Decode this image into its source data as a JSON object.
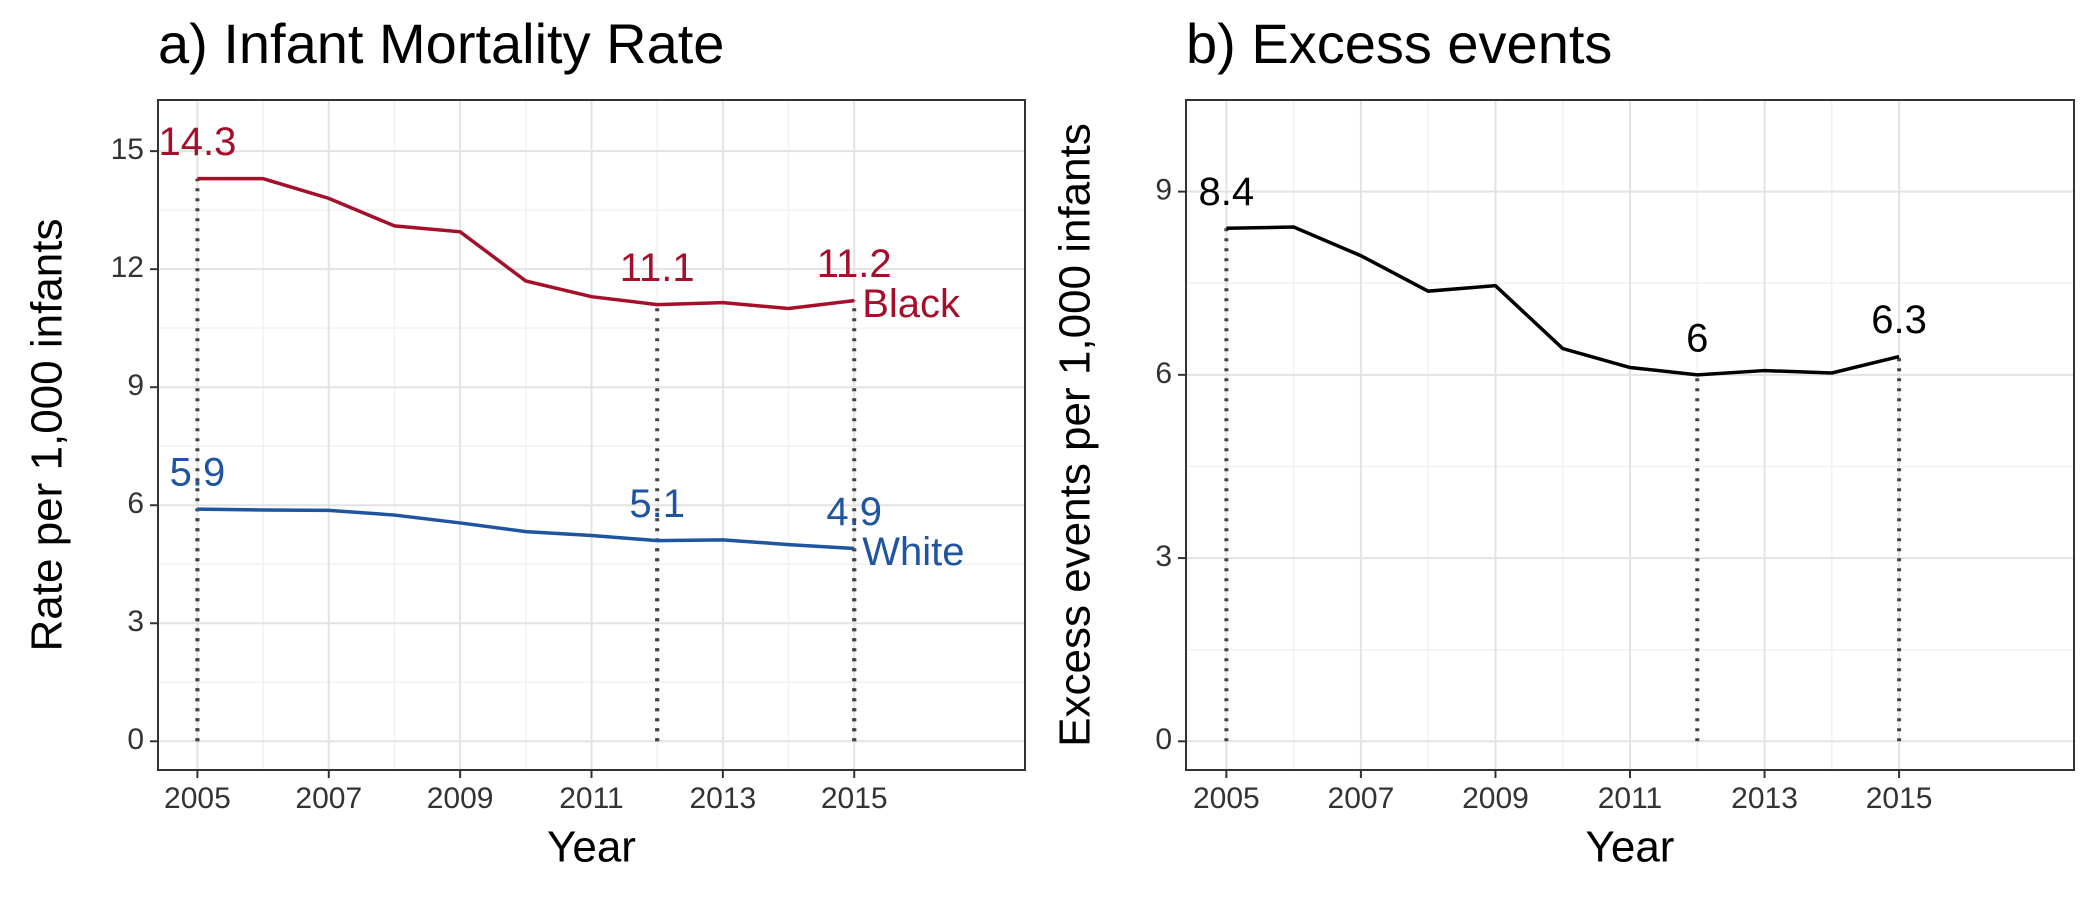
{
  "chart_data": [
    {
      "type": "line",
      "title": "a) Infant Mortality Rate",
      "x_label": "Year",
      "y_label": "Rate per 1,000 infants",
      "x": [
        2005,
        2006,
        2007,
        2008,
        2009,
        2010,
        2011,
        2012,
        2013,
        2014,
        2015
      ],
      "series": [
        {
          "name": "Black",
          "color": "#a50f2c",
          "values": [
            14.3,
            14.3,
            13.8,
            13.1,
            12.95,
            11.7,
            11.3,
            11.1,
            11.15,
            11.0,
            11.2
          ]
        },
        {
          "name": "White",
          "color": "#1f54a0",
          "values": [
            5.9,
            5.88,
            5.87,
            5.75,
            5.55,
            5.33,
            5.23,
            5.1,
            5.12,
            5.0,
            4.9
          ]
        }
      ],
      "labeled_points": [
        0,
        7,
        10
      ],
      "drop_lines": true,
      "xlim": [
        2004.4,
        2017.6
      ],
      "ylim": [
        -0.73,
        16.3
      ],
      "xticks": [
        2005,
        2007,
        2009,
        2011,
        2013,
        2015
      ],
      "yticks": [
        0,
        3,
        6,
        9,
        12,
        15
      ],
      "grid": true
    },
    {
      "type": "line",
      "title": "b) Excess events",
      "x_label": "Year",
      "y_label": "Excess events per 1,000 infants",
      "x": [
        2005,
        2006,
        2007,
        2008,
        2009,
        2010,
        2011,
        2012,
        2013,
        2014,
        2015
      ],
      "values": [
        8.4,
        8.42,
        7.95,
        7.37,
        7.46,
        6.43,
        6.12,
        6,
        6.07,
        6.03,
        6.3
      ],
      "color": "#000000",
      "labeled_points": [
        0,
        7,
        10
      ],
      "drop_lines": true,
      "xlim": [
        2004.4,
        2017.6
      ],
      "ylim": [
        -0.47,
        10.5
      ],
      "xticks": [
        2005,
        2007,
        2009,
        2011,
        2013,
        2015
      ],
      "yticks": [
        0,
        3,
        6,
        9
      ],
      "grid": true
    }
  ]
}
